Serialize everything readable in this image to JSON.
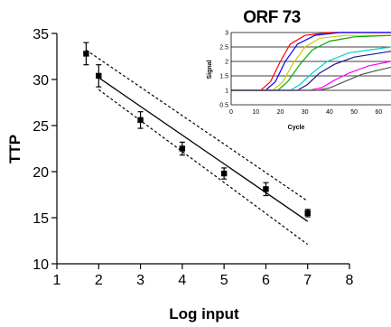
{
  "chart_data": [
    {
      "type": "scatter",
      "xlabel": "Log input",
      "ylabel": "TTP",
      "xlim": [
        1,
        8
      ],
      "ylim": [
        10,
        35
      ],
      "x_ticks": [
        1,
        2,
        3,
        4,
        5,
        6,
        7,
        8
      ],
      "y_ticks": [
        10,
        15,
        20,
        25,
        30,
        35
      ],
      "grid": false,
      "series": [
        {
          "points": [
            {
              "x": 1.7,
              "y": 32.8,
              "err": 1.2
            },
            {
              "x": 2.0,
              "y": 30.4,
              "err": 1.2
            },
            {
              "x": 3.0,
              "y": 25.6,
              "err": 0.9
            },
            {
              "x": 4.0,
              "y": 22.5,
              "err": 0.7
            },
            {
              "x": 5.0,
              "y": 19.8,
              "err": 0.6
            },
            {
              "x": 6.0,
              "y": 18.1,
              "err": 0.7
            },
            {
              "x": 7.0,
              "y": 15.5,
              "err": 0.4
            }
          ]
        }
      ],
      "regression_line": {
        "x": [
          2.0,
          7.0
        ],
        "y": [
          30.2,
          14.6
        ]
      },
      "confidence_band_upper": {
        "x": [
          1.7,
          7.0
        ],
        "y": [
          33.2,
          16.8
        ]
      },
      "confidence_band_lower": {
        "x": [
          2.0,
          7.0
        ],
        "y": [
          28.9,
          12.1
        ]
      }
    },
    {
      "type": "line",
      "title": "ORF 73",
      "xlabel": "Cycle",
      "ylabel": "Signal",
      "xlim": [
        0,
        65
      ],
      "ylim": [
        0.5,
        3
      ],
      "x_ticks": [
        0,
        10,
        20,
        30,
        40,
        50,
        60
      ],
      "y_ticks": [
        0.5,
        1,
        1.5,
        2,
        2.5,
        3
      ],
      "grid": true,
      "series": [
        {
          "color": "#ff0000",
          "values": [
            [
              0,
              1.0
            ],
            [
              12,
              1.0
            ],
            [
              16,
              1.3
            ],
            [
              20,
              2.0
            ],
            [
              24,
              2.6
            ],
            [
              30,
              2.9
            ],
            [
              40,
              3.0
            ],
            [
              65,
              3.0
            ]
          ]
        },
        {
          "color": "#0000ff",
          "values": [
            [
              0,
              1.0
            ],
            [
              14,
              1.0
            ],
            [
              18,
              1.3
            ],
            [
              22,
              2.0
            ],
            [
              27,
              2.6
            ],
            [
              34,
              2.9
            ],
            [
              44,
              3.0
            ],
            [
              65,
              3.0
            ]
          ]
        },
        {
          "color": "#cccc00",
          "values": [
            [
              0,
              1.0
            ],
            [
              17,
              1.0
            ],
            [
              21,
              1.3
            ],
            [
              25,
              1.9
            ],
            [
              30,
              2.5
            ],
            [
              36,
              2.8
            ],
            [
              46,
              2.9
            ],
            [
              65,
              2.9
            ]
          ]
        },
        {
          "color": "#00aa00",
          "values": [
            [
              0,
              1.0
            ],
            [
              19,
              1.0
            ],
            [
              23,
              1.3
            ],
            [
              28,
              1.9
            ],
            [
              33,
              2.4
            ],
            [
              40,
              2.7
            ],
            [
              50,
              2.85
            ],
            [
              65,
              2.9
            ]
          ]
        },
        {
          "color": "#00cccc",
          "values": [
            [
              0,
              1.0
            ],
            [
              24,
              1.0
            ],
            [
              28,
              1.2
            ],
            [
              33,
              1.6
            ],
            [
              39,
              2.0
            ],
            [
              48,
              2.3
            ],
            [
              65,
              2.5
            ]
          ]
        },
        {
          "color": "#1a1a8c",
          "values": [
            [
              0,
              1.0
            ],
            [
              27,
              1.0
            ],
            [
              31,
              1.2
            ],
            [
              36,
              1.6
            ],
            [
              42,
              1.9
            ],
            [
              50,
              2.15
            ],
            [
              65,
              2.35
            ]
          ]
        },
        {
          "color": "#ff00ff",
          "values": [
            [
              0,
              1.0
            ],
            [
              32,
              1.0
            ],
            [
              37,
              1.1
            ],
            [
              42,
              1.35
            ],
            [
              48,
              1.6
            ],
            [
              56,
              1.85
            ],
            [
              65,
              2.0
            ]
          ]
        },
        {
          "color": "#555555",
          "values": [
            [
              0,
              1.0
            ],
            [
              35,
              1.0
            ],
            [
              40,
              1.08
            ],
            [
              46,
              1.3
            ],
            [
              53,
              1.55
            ],
            [
              60,
              1.7
            ],
            [
              65,
              1.8
            ]
          ]
        }
      ]
    }
  ]
}
